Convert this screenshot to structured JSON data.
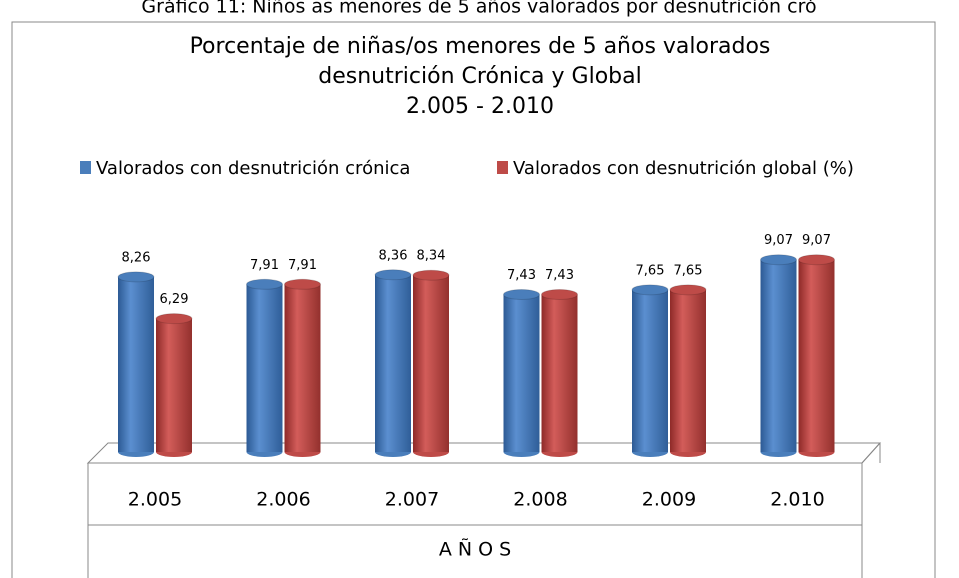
{
  "header": {
    "caption": "Gráfico 11: Niños as menores de 5 años valorados por desnutrición cró"
  },
  "chart_data": {
    "type": "bar3d",
    "title": [
      "Porcentaje de niñas/os menores de 5 años valorados",
      "desnutrición Crónica y Global",
      "2.005 - 2.010"
    ],
    "x_label": "A Ñ O S",
    "categories": [
      "2.005",
      "2.006",
      "2.007",
      "2.008",
      "2.009",
      "2.010"
    ],
    "series": [
      {
        "name": "Valorados con desnutrición crónica",
        "color": "#4a7ebb",
        "values": [
          8.26,
          7.91,
          8.36,
          7.43,
          7.65,
          9.07
        ],
        "value_labels": [
          "8,26",
          "7,91",
          "8,36",
          "7,43",
          "7,65",
          "9,07"
        ]
      },
      {
        "name": "Valorados con desnutrición global (%)",
        "color": "#be4b48",
        "values": [
          6.29,
          7.91,
          8.34,
          7.43,
          7.65,
          9.07
        ],
        "value_labels": [
          "6,29",
          "7,91",
          "8,34",
          "7,43",
          "7,65",
          "9,07"
        ]
      }
    ],
    "ylim": [
      0,
      10
    ],
    "legend": "top"
  }
}
